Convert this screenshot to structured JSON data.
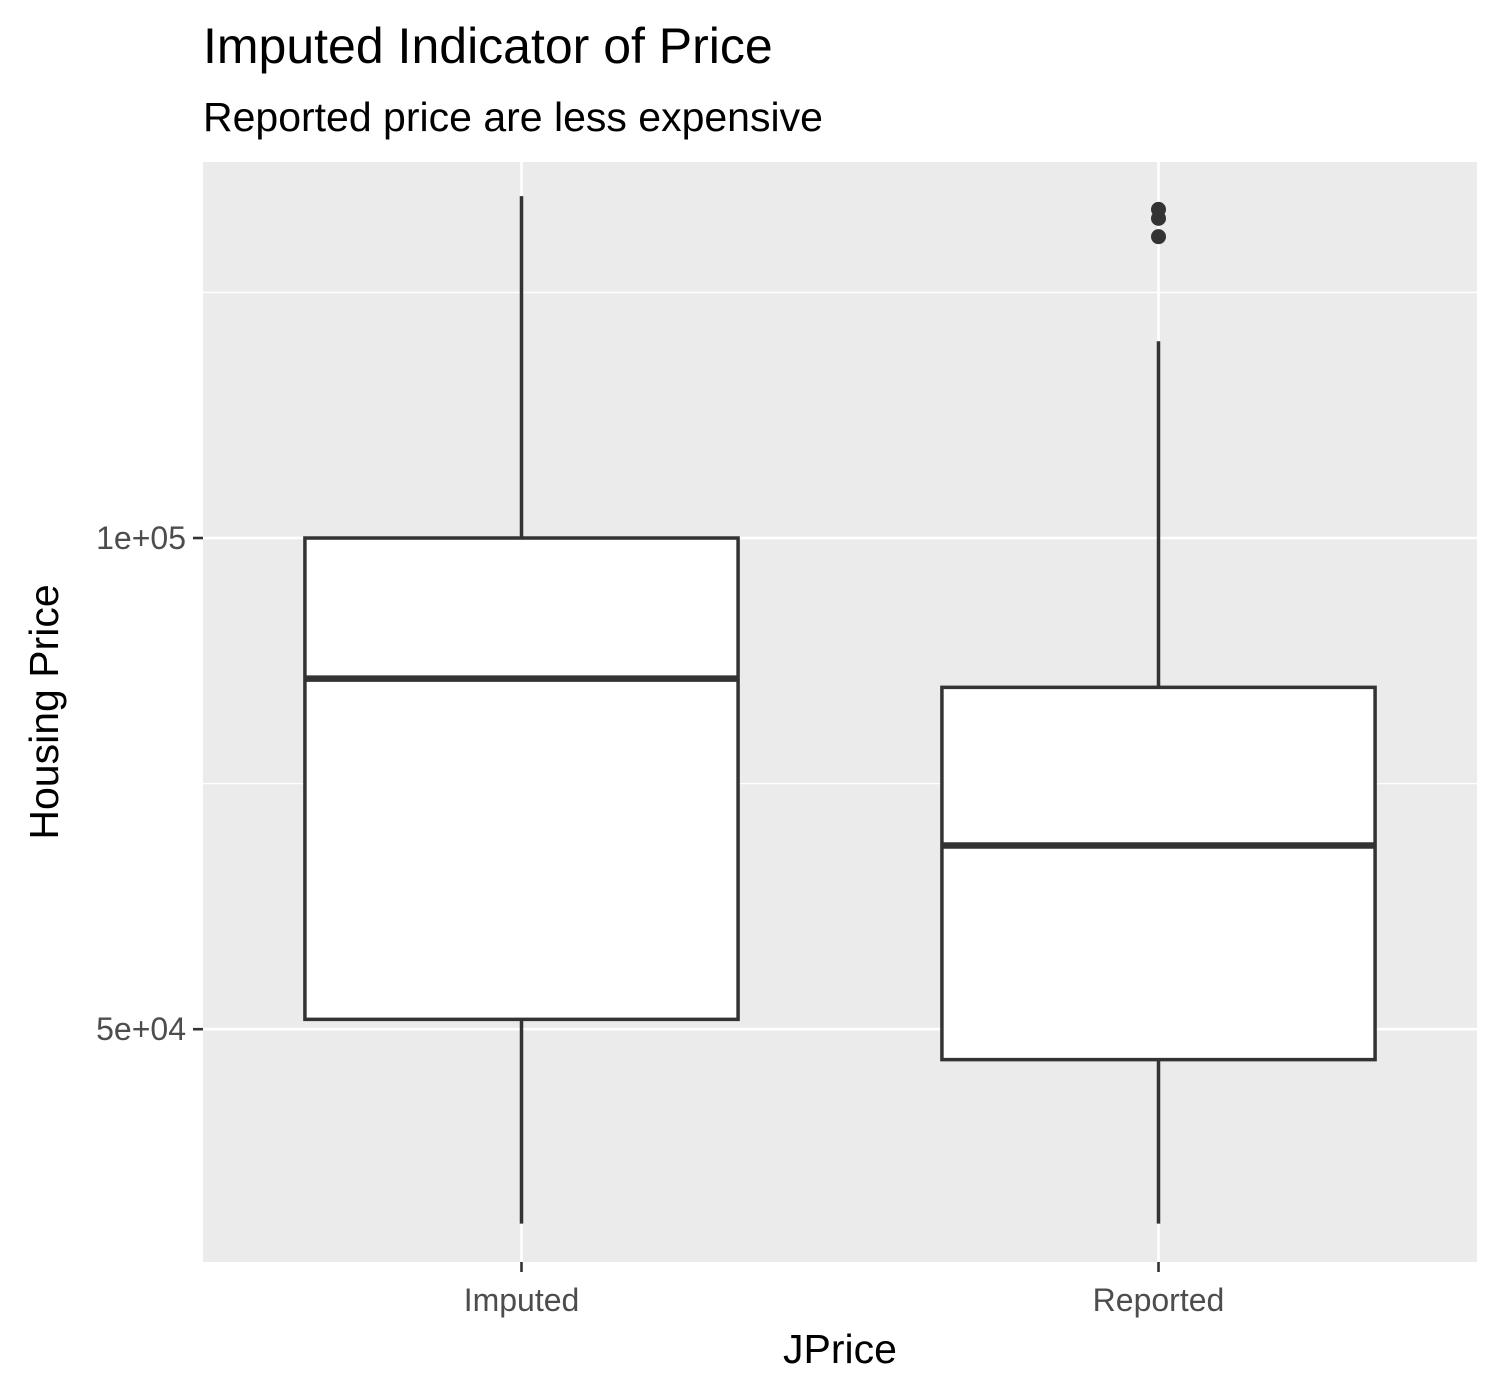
{
  "chart_data": {
    "type": "boxplot",
    "title": "Imputed Indicator of Price",
    "subtitle": "Reported price are less expensive",
    "xlabel": "JPrice",
    "ylabel": "Housing Price",
    "y_scale": "log10",
    "ylim": [
      36000,
      170000
    ],
    "y_ticks": [
      {
        "value": 50000,
        "label": "5e+04"
      },
      {
        "value": 100000,
        "label": "1e+05"
      }
    ],
    "categories": [
      "Imputed",
      "Reported"
    ],
    "boxes": [
      {
        "category": "Imputed",
        "whisker_low": 38000,
        "q1": 50700,
        "median": 82000,
        "q3": 100000,
        "whisker_high": 162000,
        "outliers": []
      },
      {
        "category": "Reported",
        "whisker_low": 38000,
        "q1": 47900,
        "median": 64800,
        "q3": 81000,
        "whisker_high": 132000,
        "outliers": [
          153000,
          157000,
          159000
        ]
      }
    ],
    "grid": true,
    "colors": {
      "panel_background": "#ebebeb",
      "grid_line": "#ffffff",
      "box_fill": "#ffffff",
      "box_stroke": "#333333",
      "outlier": "#333333",
      "tick_label": "#4d4d4d"
    }
  }
}
